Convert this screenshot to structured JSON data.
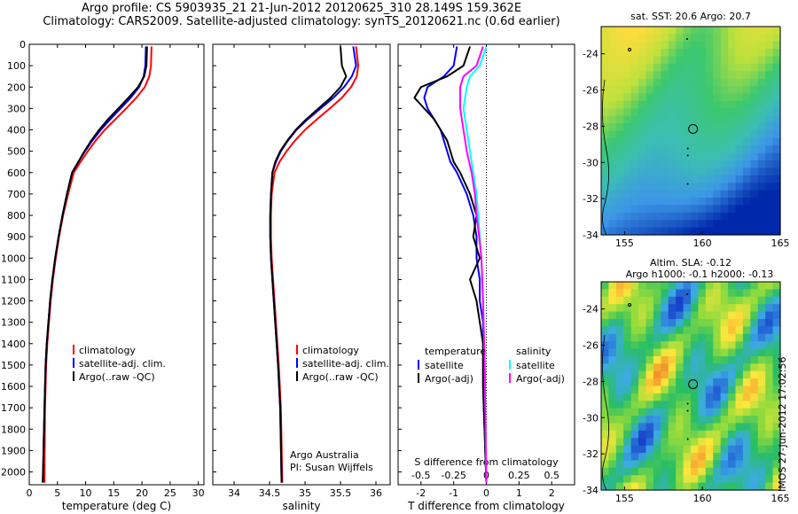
{
  "header": {
    "line1": "Argo profile: CS 5903935_21 21-Jun-2012 20120625_310 28.149S 159.362E",
    "line2": "Climatology: CARS2009. Satellite-adjusted climatology: synTS_20120621.nc (0.6d earlier)"
  },
  "colors": {
    "climatology": "#ff0000",
    "satellite": "#0000ff",
    "argo": "#000000",
    "sat_salinity": "#00ffff",
    "argo_salinity": "#ff00ff"
  },
  "chart_data": [
    {
      "type": "line",
      "id": "temperature",
      "xlabel": "temperature (deg C)",
      "xlim": [
        0,
        31
      ],
      "ylim": [
        2060,
        0
      ],
      "xticks": [
        "0",
        "5",
        "10",
        "15",
        "20",
        "25",
        "30"
      ],
      "yticks": [
        "0",
        "100",
        "200",
        "300",
        "400",
        "500",
        "600",
        "700",
        "800",
        "900",
        "1000",
        "1100",
        "1200",
        "1300",
        "1400",
        "1500",
        "1600",
        "1700",
        "1800",
        "1900",
        "2000"
      ],
      "legend": [
        "climatology",
        "satellite-adj. clim.",
        "Argo(..raw -QC)"
      ],
      "series": [
        {
          "name": "climatology",
          "color": "#ff0000",
          "x": [
            21.7,
            21.6,
            21.3,
            20.5,
            19.0,
            17.2,
            15.3,
            13.4,
            11.8,
            10.4,
            9.1,
            7.9,
            6.9,
            6.0,
            5.3,
            4.7,
            4.2,
            3.8,
            3.5,
            3.2,
            3.0,
            2.8,
            2.7
          ],
          "y": [
            10,
            100,
            150,
            200,
            250,
            300,
            350,
            400,
            450,
            500,
            550,
            600,
            700,
            800,
            900,
            1000,
            1100,
            1200,
            1300,
            1400,
            1500,
            1700,
            2050
          ]
        },
        {
          "name": "satellite-adj. clim.",
          "color": "#0000ff",
          "x": [
            20.7,
            20.6,
            20.3,
            19.5,
            18.0,
            16.2,
            14.4,
            12.7,
            11.2,
            9.9,
            8.7,
            7.6,
            6.7,
            5.9,
            5.2,
            4.6,
            4.1,
            3.7,
            3.4,
            3.1,
            2.9,
            2.7,
            2.4
          ],
          "y": [
            10,
            100,
            150,
            200,
            250,
            300,
            350,
            400,
            450,
            500,
            550,
            600,
            700,
            800,
            900,
            1000,
            1100,
            1200,
            1300,
            1400,
            1500,
            1700,
            2050
          ]
        },
        {
          "name": "Argo(..raw -QC)",
          "color": "#000000",
          "x": [
            20.9,
            20.8,
            20.4,
            19.3,
            17.6,
            15.8,
            14.0,
            12.4,
            11.0,
            9.8,
            8.7,
            7.6,
            6.7,
            5.9,
            5.2,
            4.6,
            4.1,
            3.7,
            3.4,
            3.1,
            2.9,
            2.7,
            2.4
          ],
          "y": [
            10,
            100,
            150,
            200,
            250,
            300,
            350,
            400,
            450,
            500,
            550,
            600,
            700,
            800,
            900,
            1000,
            1100,
            1200,
            1300,
            1400,
            1500,
            1700,
            2050
          ]
        }
      ]
    },
    {
      "type": "line",
      "id": "salinity",
      "xlabel": "salinity",
      "xlim": [
        33.7,
        36.2
      ],
      "ylim": [
        2060,
        0
      ],
      "xticks": [
        "34",
        "34.5",
        "35",
        "35.5",
        "36"
      ],
      "legend": [
        "climatology",
        "satellite-adj. clim.",
        "Argo(..raw -QC)"
      ],
      "annotation": [
        "Argo Australia",
        "PI: Susan Wijffels"
      ],
      "series": [
        {
          "name": "climatology",
          "color": "#ff0000",
          "x": [
            35.72,
            35.75,
            35.73,
            35.65,
            35.52,
            35.35,
            35.17,
            35.0,
            34.86,
            34.74,
            34.64,
            34.57,
            34.53,
            34.52,
            34.52,
            34.53,
            34.55,
            34.57,
            34.59,
            34.61,
            34.63,
            34.66,
            34.68
          ],
          "y": [
            10,
            100,
            150,
            200,
            250,
            300,
            350,
            400,
            450,
            500,
            550,
            600,
            700,
            800,
            900,
            1000,
            1100,
            1200,
            1300,
            1400,
            1500,
            1700,
            2050
          ]
        },
        {
          "name": "satellite-adj. clim.",
          "color": "#0000ff",
          "x": [
            35.68,
            35.72,
            35.66,
            35.55,
            35.4,
            35.22,
            35.04,
            34.88,
            34.76,
            34.66,
            34.59,
            34.54,
            34.52,
            34.51,
            34.51,
            34.52,
            34.54,
            34.56,
            34.58,
            34.6,
            34.62,
            34.65,
            34.67
          ],
          "y": [
            10,
            100,
            150,
            200,
            250,
            300,
            350,
            400,
            450,
            500,
            550,
            600,
            700,
            800,
            900,
            1000,
            1100,
            1200,
            1300,
            1400,
            1500,
            1700,
            2050
          ]
        },
        {
          "name": "Argo(..raw -QC)",
          "color": "#000000",
          "x": [
            35.5,
            35.52,
            35.58,
            35.5,
            35.36,
            35.19,
            35.02,
            34.87,
            34.75,
            34.65,
            34.58,
            34.54,
            34.52,
            34.51,
            34.51,
            34.52,
            34.54,
            34.56,
            34.58,
            34.6,
            34.62,
            34.65,
            34.67
          ],
          "y": [
            10,
            100,
            150,
            200,
            250,
            300,
            350,
            400,
            450,
            500,
            550,
            600,
            700,
            800,
            900,
            1000,
            1100,
            1200,
            1300,
            1400,
            1500,
            1700,
            2050
          ]
        }
      ]
    },
    {
      "type": "line",
      "id": "difference",
      "xlabel": "T difference from climatology",
      "xlabel_top": "S difference from climatology",
      "xlim": [
        -2.7,
        2.7
      ],
      "ylim": [
        2060,
        0
      ],
      "xticks": [
        "-2",
        "-1",
        "0",
        "1",
        "2"
      ],
      "xticks_top": [
        "-0.5",
        "-0.25",
        "0",
        "0.25",
        "0.5"
      ],
      "legend_left_title": "temperature",
      "legend_right_title": "salinity",
      "legend_left": [
        "satellite",
        "Argo(-adj)"
      ],
      "legend_right": [
        "satellite",
        "Argo(-adj)"
      ],
      "series": [
        {
          "name": "satellite",
          "color": "#0000ff",
          "x": [
            -0.9,
            -1.0,
            -1.3,
            -1.8,
            -1.9,
            -1.8,
            -1.6,
            -1.4,
            -1.3,
            -1.2,
            -1.1,
            -0.9,
            -0.6,
            -0.4,
            -0.3,
            -0.3,
            -0.2,
            -0.2,
            -0.1,
            -0.1,
            -0.1,
            0.0
          ],
          "y": [
            10,
            100,
            150,
            200,
            250,
            300,
            350,
            400,
            450,
            500,
            550,
            600,
            700,
            800,
            900,
            1000,
            1100,
            1200,
            1300,
            1400,
            1600,
            2050
          ]
        },
        {
          "name": "Argo(-adj)",
          "color": "#000000",
          "x": [
            -0.5,
            -0.7,
            -1.2,
            -2.0,
            -2.2,
            -1.9,
            -1.6,
            -1.4,
            -1.2,
            -1.1,
            -1.0,
            -0.8,
            -0.5,
            -0.3,
            -0.4,
            -0.2,
            -0.5,
            -0.3,
            -0.2,
            -0.1,
            -0.1,
            0.0
          ],
          "y": [
            10,
            100,
            150,
            200,
            250,
            300,
            350,
            400,
            450,
            500,
            550,
            600,
            700,
            800,
            900,
            1000,
            1100,
            1200,
            1300,
            1400,
            1600,
            2050
          ]
        },
        {
          "name": "satellite (salinity)",
          "color": "#00ffff",
          "x": [
            0.0,
            -0.2,
            -0.5,
            -0.6,
            -0.7,
            -0.6,
            -0.5,
            -0.4,
            -0.3,
            -0.25,
            -0.2,
            -0.15,
            -0.1,
            -0.05,
            0.0
          ],
          "y": [
            10,
            100,
            150,
            200,
            300,
            400,
            500,
            600,
            700,
            800,
            900,
            1000,
            1200,
            1500,
            2050
          ]
        },
        {
          "name": "Argo(-adj) (salinity)",
          "color": "#ff00ff",
          "x": [
            -0.1,
            -0.3,
            -0.7,
            -0.8,
            -0.8,
            -0.7,
            -0.6,
            -0.45,
            -0.35,
            -0.3,
            -0.22,
            -0.15,
            -0.1,
            -0.05,
            0.0
          ],
          "y": [
            10,
            100,
            150,
            200,
            300,
            400,
            500,
            600,
            700,
            800,
            900,
            1000,
            1200,
            1500,
            2050
          ]
        }
      ]
    },
    {
      "type": "heatmap",
      "id": "sst-map",
      "title": "sat. SST: 20.6  Argo: 20.7",
      "xlim": [
        153.5,
        165
      ],
      "ylim": [
        -34,
        -22.5
      ],
      "xticks": [
        "155",
        "160",
        "165"
      ],
      "yticks": [
        "-24",
        "-26",
        "-28",
        "-30",
        "-32",
        "-34"
      ],
      "marker": {
        "lon": 159.4,
        "lat": -28.15
      }
    },
    {
      "type": "heatmap",
      "id": "sla-map",
      "title": "Altim. SLA: -0.12",
      "subtitle": "Argo h1000: -0.1  h2000: -0.13",
      "xlim": [
        153.5,
        165
      ],
      "ylim": [
        -34,
        -22.5
      ],
      "xticks": [
        "155",
        "160",
        "165"
      ],
      "yticks": [
        "-24",
        "-26",
        "-28",
        "-30",
        "-32",
        "-34"
      ],
      "marker": {
        "lon": 159.4,
        "lat": -28.15
      }
    }
  ],
  "footer": {
    "stamp": "IMOS 27-Jun-2012 17:02:56"
  }
}
